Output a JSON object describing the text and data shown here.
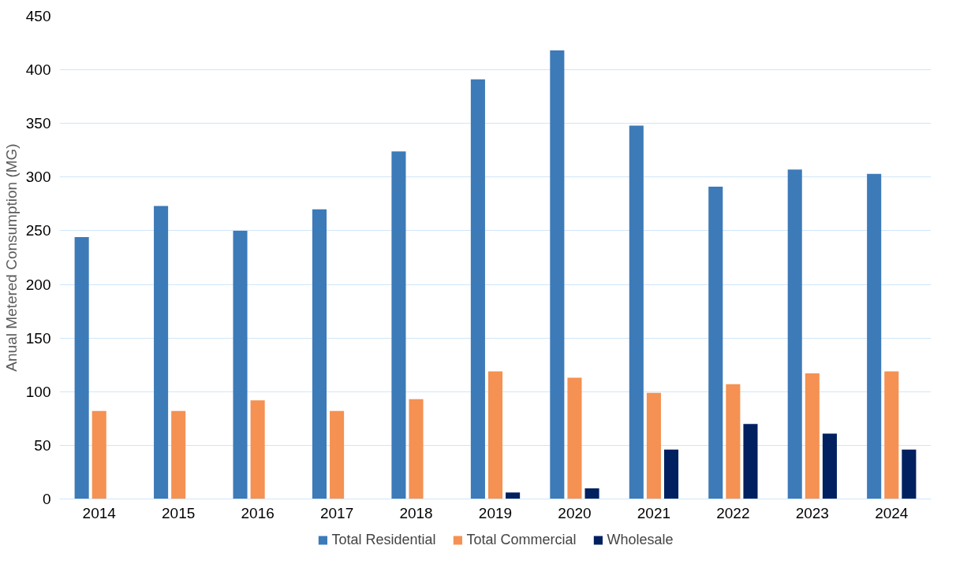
{
  "chart_data": {
    "type": "bar",
    "ylabel": "Anual Metered Consumption (MG)",
    "categories": [
      "2014",
      "2015",
      "2016",
      "2017",
      "2018",
      "2019",
      "2020",
      "2021",
      "2022",
      "2023",
      "2024"
    ],
    "series": [
      {
        "name": "Total Residential",
        "color": "#3d7ab8",
        "values": [
          244,
          273,
          250,
          270,
          324,
          391,
          418,
          348,
          291,
          307,
          303
        ]
      },
      {
        "name": "Total Commercial",
        "color": "#f59152",
        "values": [
          82,
          82,
          92,
          82,
          93,
          119,
          113,
          99,
          107,
          117,
          119
        ]
      },
      {
        "name": "Wholesale",
        "color": "#00205f",
        "values": [
          null,
          null,
          null,
          null,
          null,
          6,
          10,
          46,
          70,
          61,
          46
        ]
      }
    ],
    "ylim": [
      0,
      450
    ],
    "yticks": [
      0,
      50,
      100,
      150,
      200,
      250,
      300,
      350,
      400,
      450
    ],
    "grid": "y",
    "legend": "bottom"
  }
}
